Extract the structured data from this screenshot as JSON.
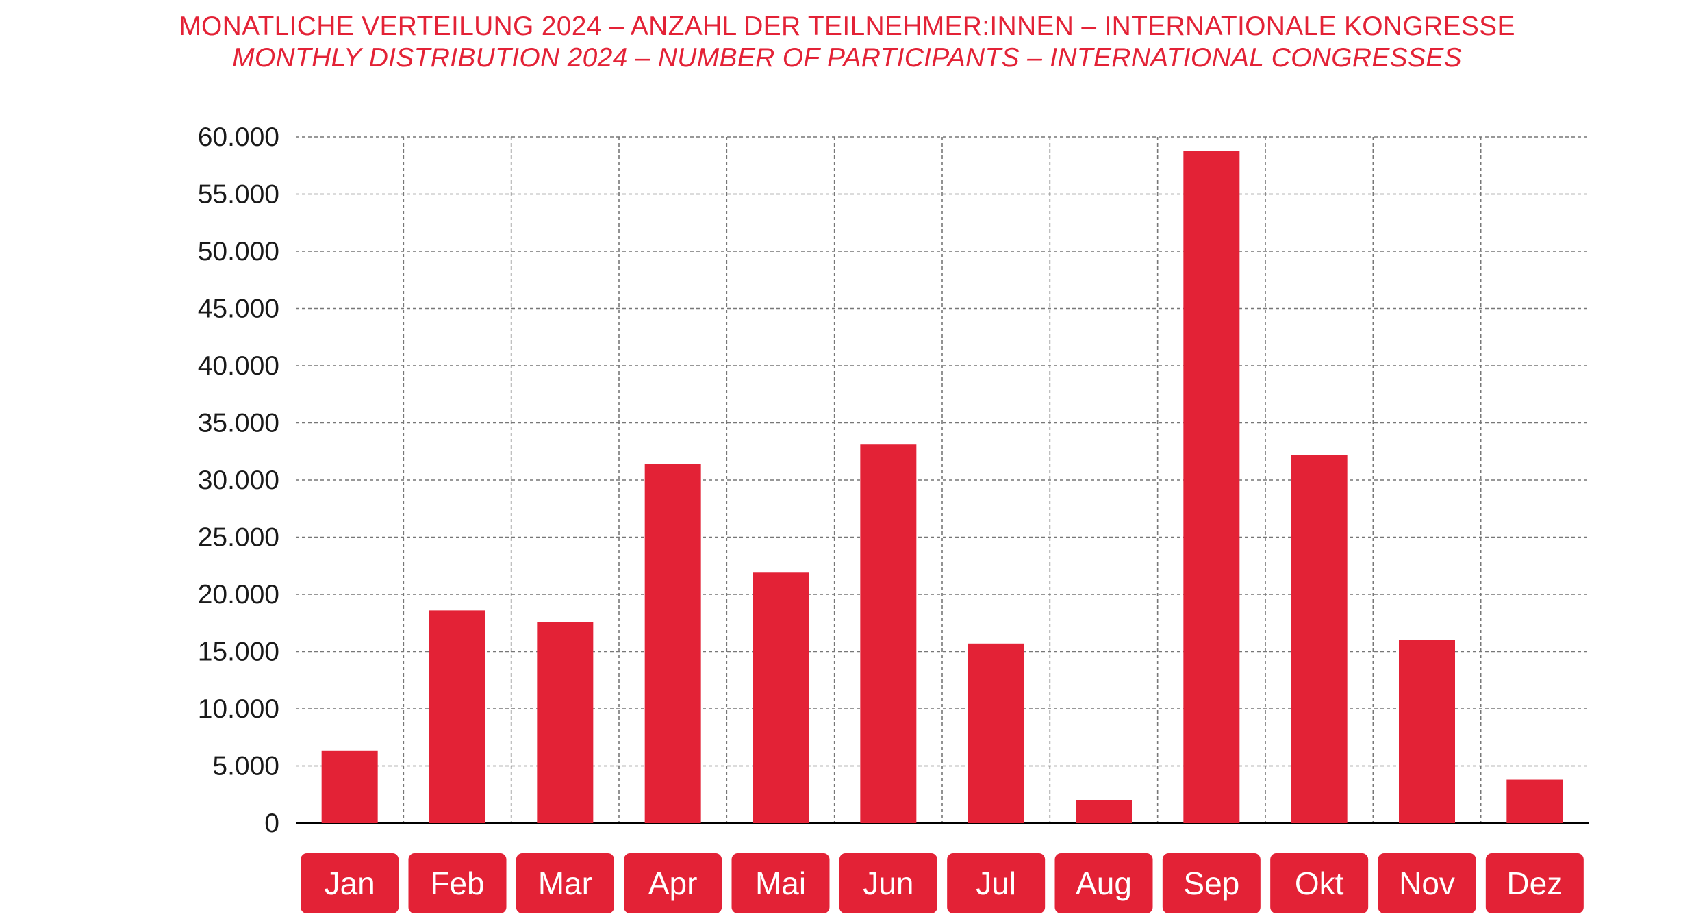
{
  "titles": {
    "de": "MONATLICHE VERTEILUNG 2024 – ANZAHL DER TEILNEHMER:INNEN – INTERNATIONALE KONGRESSE",
    "en": "MONTHLY DISTRIBUTION 2024 – NUMBER OF PARTICIPANTS – INTERNATIONAL CONGRESSES"
  },
  "colors": {
    "accent": "#e32236",
    "grid": "#777777",
    "axis": "#000000",
    "text": "#1a1a1a"
  },
  "chart_data": {
    "type": "bar",
    "title": "MONATLICHE VERTEILUNG 2024 – ANZAHL DER TEILNEHMER:INNEN – INTERNATIONALE KONGRESSE",
    "subtitle": "MONTHLY DISTRIBUTION 2024 – NUMBER OF PARTICIPANTS – INTERNATIONAL CONGRESSES",
    "xlabel": "",
    "ylabel": "",
    "categories": [
      "Jan",
      "Feb",
      "Mar",
      "Apr",
      "Mai",
      "Jun",
      "Jul",
      "Aug",
      "Sep",
      "Okt",
      "Nov",
      "Dez"
    ],
    "values": [
      6300,
      18600,
      17600,
      31400,
      21900,
      33100,
      15700,
      2000,
      58800,
      32200,
      16000,
      3800
    ],
    "ylim": [
      0,
      60000
    ],
    "yticks": [
      0,
      5000,
      10000,
      15000,
      20000,
      25000,
      30000,
      35000,
      40000,
      45000,
      50000,
      55000,
      60000
    ],
    "ytick_labels": [
      "0",
      "5.000",
      "10.000",
      "15.000",
      "20.000",
      "25.000",
      "30.000",
      "35.000",
      "40.000",
      "45.000",
      "50.000",
      "55.000",
      "60.000"
    ],
    "grid": true,
    "grid_style": "dashed",
    "legend": "none"
  }
}
